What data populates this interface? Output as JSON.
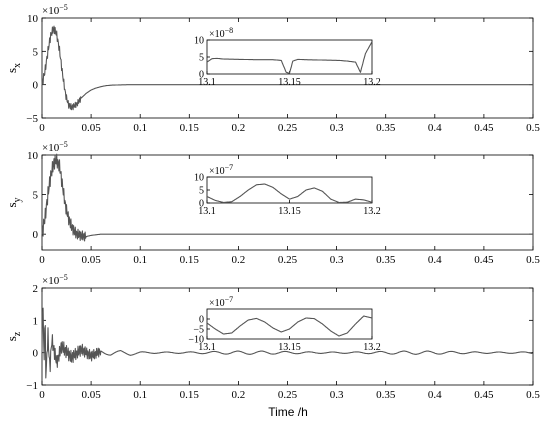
{
  "xlabel": "Time /h",
  "chart_data": [
    {
      "type": "line",
      "ylabel": "s",
      "ylabel_sub": "x",
      "exponent": "×10",
      "exponent_power": "−5",
      "xlim": [
        0,
        0.5
      ],
      "ylim": [
        -5,
        10
      ],
      "xticks": [
        0,
        0.05,
        0.1,
        0.15,
        0.2,
        0.25,
        0.3,
        0.35,
        0.4,
        0.45,
        0.5
      ],
      "xtick_labels": [
        "0",
        "0.05",
        "0.1",
        "0.15",
        "0.2",
        "0.25",
        "0.3",
        "0.35",
        "0.4",
        "0.45",
        "0.5"
      ],
      "yticks": [
        -5,
        0,
        5,
        10
      ],
      "ytick_labels": [
        "−5",
        "0",
        "5",
        "10"
      ],
      "series": [
        {
          "color": "#555555",
          "x": [
            0,
            0.003,
            0.006,
            0.009,
            0.012,
            0.015,
            0.018,
            0.021,
            0.024,
            0.027,
            0.03,
            0.033,
            0.036,
            0.04,
            0.045,
            0.05,
            0.055,
            0.06,
            0.065,
            0.07,
            0.08,
            0.09,
            0.1,
            0.2,
            0.3,
            0.4,
            0.5
          ],
          "y": [
            0,
            2,
            5,
            7.5,
            8.5,
            7.5,
            5,
            1.5,
            -1.5,
            -3,
            -3.4,
            -3.2,
            -2.8,
            -2,
            -1.3,
            -0.8,
            -0.5,
            -0.3,
            -0.15,
            -0.08,
            -0.03,
            0,
            0,
            0,
            0,
            0,
            0
          ],
          "wiggle_until": 0.04,
          "wiggle_amp": 0.7
        }
      ],
      "inset": {
        "xlim": [
          13.1,
          13.2
        ],
        "ylim": [
          0,
          10
        ],
        "xticks": [
          13.1,
          13.15,
          13.2
        ],
        "xtick_labels": [
          "13.1",
          "13.15",
          "13.2"
        ],
        "yticks": [
          0,
          5,
          10
        ],
        "ytick_labels": [
          "0",
          "5",
          "10"
        ],
        "exponent": "×10",
        "exponent_power": "−8",
        "x": [
          13.1,
          13.103,
          13.106,
          13.11,
          13.12,
          13.13,
          13.14,
          13.145,
          13.148,
          13.15,
          13.152,
          13.155,
          13.16,
          13.17,
          13.18,
          13.185,
          13.19,
          13.193,
          13.196,
          13.2
        ],
        "y": [
          3.5,
          4.5,
          4.6,
          4.4,
          4.3,
          4.2,
          4.2,
          4.0,
          0.5,
          0.2,
          3.8,
          4.3,
          4.2,
          4.1,
          4.0,
          3.8,
          3.5,
          0.5,
          6,
          9.5
        ]
      }
    },
    {
      "type": "line",
      "ylabel": "s",
      "ylabel_sub": "y",
      "exponent": "×10",
      "exponent_power": "−5",
      "xlim": [
        0,
        0.5
      ],
      "ylim": [
        -2,
        10
      ],
      "xticks": [
        0,
        0.05,
        0.1,
        0.15,
        0.2,
        0.25,
        0.3,
        0.35,
        0.4,
        0.45,
        0.5
      ],
      "xtick_labels": [
        "0",
        "0.05",
        "0.1",
        "0.15",
        "0.2",
        "0.25",
        "0.3",
        "0.35",
        "0.4",
        "0.45",
        "0.5"
      ],
      "yticks": [
        0,
        5,
        10
      ],
      "ytick_labels": [
        "0",
        "5",
        "10"
      ],
      "series": [
        {
          "color": "#555555",
          "x": [
            0,
            0.003,
            0.006,
            0.009,
            0.012,
            0.015,
            0.018,
            0.021,
            0.024,
            0.027,
            0.03,
            0.033,
            0.036,
            0.04,
            0.045,
            0.05,
            0.06,
            0.1,
            0.2,
            0.3,
            0.4,
            0.5
          ],
          "y": [
            0,
            2,
            5,
            7.5,
            9,
            9.3,
            8.5,
            6,
            3.5,
            2,
            1,
            0.3,
            0,
            -0.2,
            -0.3,
            -0.15,
            0,
            0,
            0,
            0,
            0,
            0
          ],
          "wiggle_until": 0.045,
          "wiggle_amp": 1.0
        }
      ],
      "inset": {
        "xlim": [
          13.1,
          13.2
        ],
        "ylim": [
          0,
          10
        ],
        "xticks": [
          13.1,
          13.15,
          13.2
        ],
        "xtick_labels": [
          "13.1",
          "13.15",
          "13.2"
        ],
        "yticks": [
          0,
          5,
          10
        ],
        "ytick_labels": [
          "0",
          "5",
          "10"
        ],
        "exponent": "×10",
        "exponent_power": "−7",
        "x": [
          13.1,
          13.105,
          13.11,
          13.115,
          13.12,
          13.125,
          13.13,
          13.135,
          13.14,
          13.145,
          13.15,
          13.155,
          13.16,
          13.165,
          13.17,
          13.175,
          13.18,
          13.185,
          13.19,
          13.195,
          13.2
        ],
        "y": [
          2.5,
          1,
          0.2,
          0.5,
          2.5,
          5,
          7,
          7.3,
          6,
          3.5,
          1.5,
          2.5,
          5,
          5.8,
          4.5,
          1.5,
          0.2,
          0.3,
          1.5,
          1.2,
          0.3
        ]
      }
    },
    {
      "type": "line",
      "ylabel": "s",
      "ylabel_sub": "z",
      "exponent": "×10",
      "exponent_power": "−5",
      "xlim": [
        0,
        0.5
      ],
      "ylim": [
        -1,
        2
      ],
      "xticks": [
        0,
        0.05,
        0.1,
        0.15,
        0.2,
        0.25,
        0.3,
        0.35,
        0.4,
        0.45,
        0.5
      ],
      "xtick_labels": [
        "0",
        "0.05",
        "0.1",
        "0.15",
        "0.2",
        "0.25",
        "0.3",
        "0.35",
        "0.4",
        "0.45",
        "0.5"
      ],
      "yticks": [
        -1,
        0,
        1,
        2
      ],
      "ytick_labels": [
        "−1",
        "0",
        "1",
        "2"
      ],
      "series": [
        {
          "color": "#555555",
          "x": [
            0,
            0.001,
            0.002,
            0.003,
            0.004,
            0.006,
            0.008,
            0.01,
            0.015,
            0.02,
            0.03,
            0.04,
            0.05,
            0.06,
            0.07,
            0.08,
            0.09,
            0.1,
            0.2,
            0.3,
            0.4,
            0.5
          ],
          "y": [
            0,
            1.9,
            -0.6,
            1.3,
            -0.8,
            0.6,
            -0.5,
            0.4,
            -0.3,
            0.2,
            -0.15,
            0.1,
            -0.1,
            0.05,
            -0.05,
            0.03,
            -0.05,
            0,
            0,
            0,
            0,
            0
          ],
          "wiggle_until": 0.06,
          "wiggle_amp": 0.25,
          "tail_osc_amp": 0.05
        }
      ],
      "inset": {
        "xlim": [
          13.1,
          13.2
        ],
        "ylim": [
          -10,
          5
        ],
        "xticks": [
          13.1,
          13.15,
          13.2
        ],
        "xtick_labels": [
          "13.1",
          "13.15",
          "13.2"
        ],
        "yticks": [
          -10,
          -5,
          0
        ],
        "ytick_labels": [
          "−10",
          "−5",
          "0"
        ],
        "exponent": "×10",
        "exponent_power": "−7",
        "x": [
          13.1,
          13.105,
          13.11,
          13.115,
          13.12,
          13.125,
          13.13,
          13.135,
          13.14,
          13.145,
          13.15,
          13.155,
          13.16,
          13.165,
          13.17,
          13.175,
          13.18,
          13.185,
          13.19,
          13.195,
          13.2
        ],
        "y": [
          -2,
          -5,
          -7.5,
          -7,
          -3.5,
          -0.5,
          0.3,
          -1.5,
          -4.5,
          -6.5,
          -5,
          -1.5,
          0.5,
          0.2,
          -2.5,
          -6,
          -8.5,
          -7,
          -2.5,
          1.5,
          0.5
        ]
      }
    }
  ]
}
